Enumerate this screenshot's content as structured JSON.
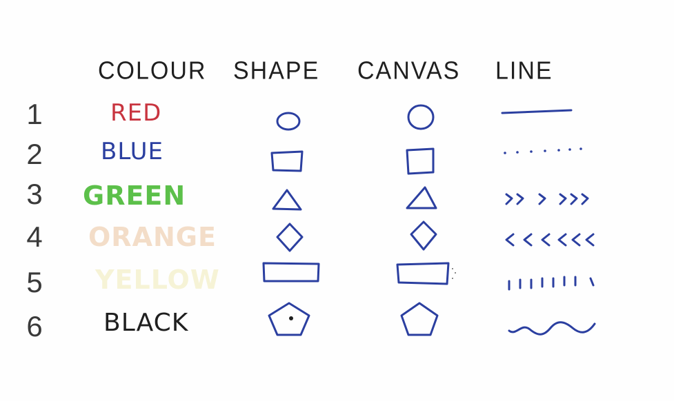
{
  "headers": {
    "colour": "COLOUR",
    "shape": "SHAPE",
    "canvas": "CANVAS",
    "line": "LINE"
  },
  "rows": [
    {
      "number": "1",
      "colour": "RED",
      "colour_hex": "#c8343f",
      "shape_icon": "circle-icon",
      "canvas_icon": "circle-icon",
      "line_style": "solid"
    },
    {
      "number": "2",
      "colour": "BLUE",
      "colour_hex": "#2b3fa0",
      "shape_icon": "square-icon",
      "canvas_icon": "square-icon",
      "line_style": "dotted"
    },
    {
      "number": "3",
      "colour": "GREEN",
      "colour_hex": "#5cc04a",
      "shape_icon": "triangle-icon",
      "canvas_icon": "triangle-icon",
      "line_style": "right-chevrons"
    },
    {
      "number": "4",
      "colour": "ORANGE",
      "colour_hex": "#f3ddc8",
      "shape_icon": "diamond-icon",
      "canvas_icon": "diamond-icon",
      "line_style": "left-chevrons"
    },
    {
      "number": "5",
      "colour": "YELLOW",
      "colour_hex": "#f6f3d6",
      "shape_icon": "rectangle-icon",
      "canvas_icon": "rectangle-icon",
      "line_style": "vertical-ticks"
    },
    {
      "number": "6",
      "colour": "BLACK",
      "colour_hex": "#1f1f1f",
      "shape_icon": "pentagon-icon",
      "canvas_icon": "pentagon-icon",
      "line_style": "wavy"
    }
  ],
  "ink_color": "#2b3fa0"
}
